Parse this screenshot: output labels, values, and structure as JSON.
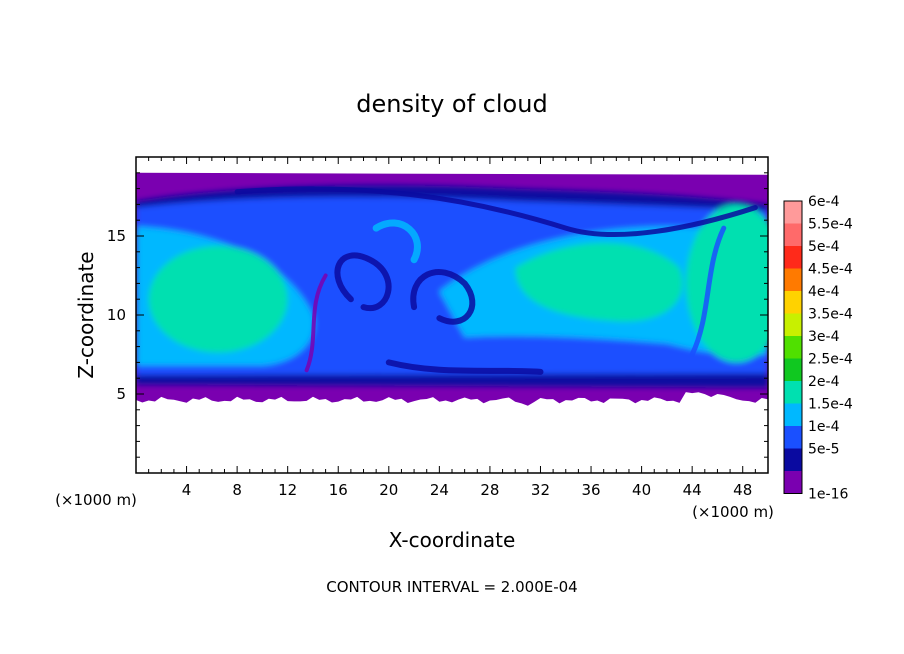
{
  "chart_data": {
    "type": "heatmap",
    "title": "density of cloud",
    "xlabel": "X-coordinate",
    "ylabel": "Z-coordinate",
    "x_unit": "(×1000 m)",
    "y_unit": "(×1000 m)",
    "x_ticks": [
      4,
      8,
      12,
      16,
      20,
      24,
      28,
      32,
      36,
      40,
      44,
      48
    ],
    "y_ticks": [
      5,
      10,
      15
    ],
    "xlim": [
      0,
      50
    ],
    "ylim": [
      0,
      20
    ],
    "footer": "CONTOUR INTERVAL = 2.000E-04",
    "colorbar": {
      "labels": [
        "6e-4",
        "5.5e-4",
        "5e-4",
        "4.5e-4",
        "4e-4",
        "3.5e-4",
        "3e-4",
        "2.5e-4",
        "2e-4",
        "1.5e-4",
        "1e-4",
        "5e-5",
        "1e-16"
      ],
      "colors": [
        "#ff9a9a",
        "#ff6a6a",
        "#ff2a1a",
        "#ff7a00",
        "#ffd200",
        "#c8f000",
        "#50e000",
        "#10c820",
        "#00e0b0",
        "#00b8ff",
        "#1a50ff",
        "#0a0aa0",
        "#7a00b0"
      ]
    },
    "cloud_layer": {
      "base_km": 5,
      "top_km": 19,
      "max_density": 0.0002
    }
  }
}
